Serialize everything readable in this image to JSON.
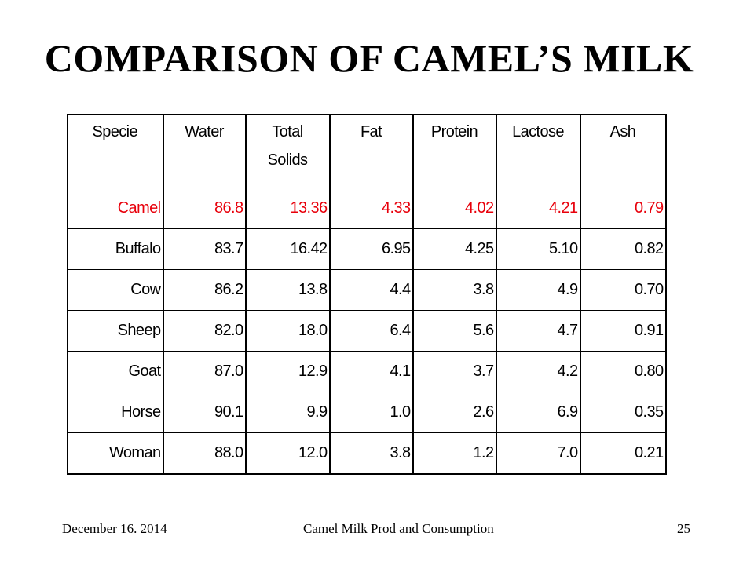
{
  "title": "COMPARISON OF CAMEL’S MILK",
  "table": {
    "headers": [
      "Specie",
      "Water",
      "Total Solids",
      "Fat",
      "Protein",
      "Lactose",
      "Ash"
    ],
    "header_lines": [
      [
        "Specie"
      ],
      [
        "Water"
      ],
      [
        "Total",
        "Solids"
      ],
      [
        "Fat"
      ],
      [
        "Protein"
      ],
      [
        "Lactose"
      ],
      [
        "Ash"
      ]
    ],
    "rows": [
      [
        "Camel",
        "86.8",
        "13.36",
        "4.33",
        "4.02",
        "4.21",
        "0.79"
      ],
      [
        "Buffalo",
        "83.7",
        "16.42",
        "6.95",
        "4.25",
        "5.10",
        "0.82"
      ],
      [
        "Cow",
        "86.2",
        "13.8",
        "4.4",
        "3.8",
        "4.9",
        "0.70"
      ],
      [
        "Sheep",
        "82.0",
        "18.0",
        "6.4",
        "5.6",
        "4.7",
        "0.91"
      ],
      [
        "Goat",
        "87.0",
        "12.9",
        "4.1",
        "3.7",
        "4.2",
        "0.80"
      ],
      [
        "Horse",
        "90.1",
        "9.9",
        "1.0",
        "2.6",
        "6.9",
        "0.35"
      ],
      [
        "Woman",
        "88.0",
        "12.0",
        "3.8",
        "1.2",
        "7.0",
        "0.21"
      ]
    ],
    "highlight_row": "Camel",
    "highlight_color": "#e8000b"
  },
  "footer": {
    "date": "December 16. 2014",
    "center": "Camel Milk Prod and Consumption",
    "page": "25"
  }
}
